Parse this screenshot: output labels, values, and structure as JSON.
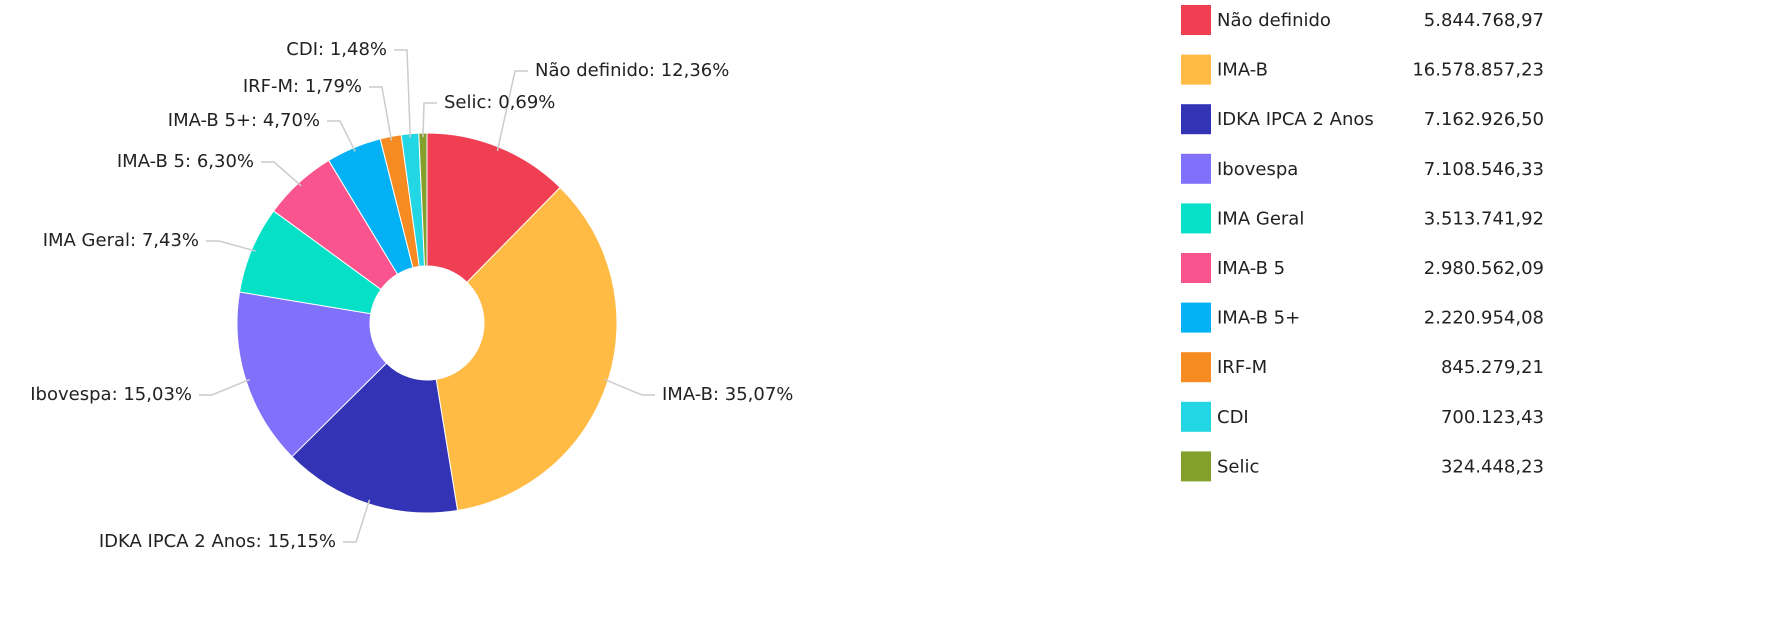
{
  "chart_data": {
    "type": "donut",
    "categories": [
      "Não definido",
      "IMA-B",
      "IDKA IPCA 2 Anos",
      "Ibovespa",
      "IMA Geral",
      "IMA-B 5",
      "IMA-B 5+",
      "IRF-M",
      "CDI",
      "Selic"
    ],
    "values": [
      12.36,
      35.07,
      15.15,
      15.03,
      7.43,
      6.3,
      4.7,
      1.79,
      1.48,
      0.69
    ],
    "value_labels": [
      "12,36%",
      "35,07%",
      "15,15%",
      "15,03%",
      "7,43%",
      "6,30%",
      "4,70%",
      "1,79%",
      "1,48%",
      "0,69%"
    ],
    "colors": [
      "#f03e52",
      "#ffbb44",
      "#3333b5",
      "#8170f9",
      "#06e0c7",
      "#fa548e",
      "#04b1f5",
      "#f68b22",
      "#22d6e3",
      "#839f2c"
    ],
    "amounts": [
      5844768.97,
      16578857.23,
      7162926.5,
      7108546.33,
      3513741.92,
      2980562.09,
      2220954.08,
      845279.21,
      700123.43,
      324448.23
    ],
    "amount_labels": [
      "5.844.768,97",
      "16.578.857,23",
      "7.162.926,50",
      "7.108.546,33",
      "3.513.741,92",
      "2.980.562,09",
      "2.220.954,08",
      "845.279,21",
      "700.123,43",
      "324.448,23"
    ],
    "legend": "right"
  }
}
